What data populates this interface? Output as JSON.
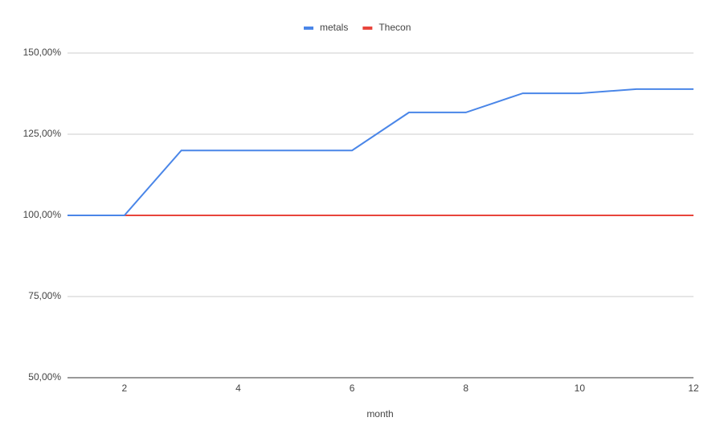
{
  "chart_data": {
    "type": "line",
    "x_label": "month",
    "x": [
      1,
      2,
      3,
      4,
      5,
      6,
      7,
      8,
      9,
      10,
      11,
      12
    ],
    "series": [
      {
        "name": "metals",
        "color": "#4a86e8",
        "values": [
          100,
          100,
          120,
          120,
          120,
          120,
          131.7,
          131.7,
          137.6,
          137.6,
          138.9,
          138.9
        ]
      },
      {
        "name": "Thecon",
        "color": "#e8453c",
        "values": [
          100,
          100,
          100,
          100,
          100,
          100,
          100,
          100,
          100,
          100,
          100,
          100
        ]
      }
    ],
    "xlim": [
      1,
      12
    ],
    "xticks": [
      2,
      4,
      6,
      8,
      10,
      12
    ],
    "ylim": [
      50,
      150
    ],
    "yticks": [
      {
        "value": 50,
        "label": "50,00%"
      },
      {
        "value": 75,
        "label": "75,00%"
      },
      {
        "value": 100,
        "label": "100,00%"
      },
      {
        "value": 125,
        "label": "125,00%"
      },
      {
        "value": 150,
        "label": "150,00%"
      }
    ],
    "grid": true,
    "legend": "top"
  }
}
